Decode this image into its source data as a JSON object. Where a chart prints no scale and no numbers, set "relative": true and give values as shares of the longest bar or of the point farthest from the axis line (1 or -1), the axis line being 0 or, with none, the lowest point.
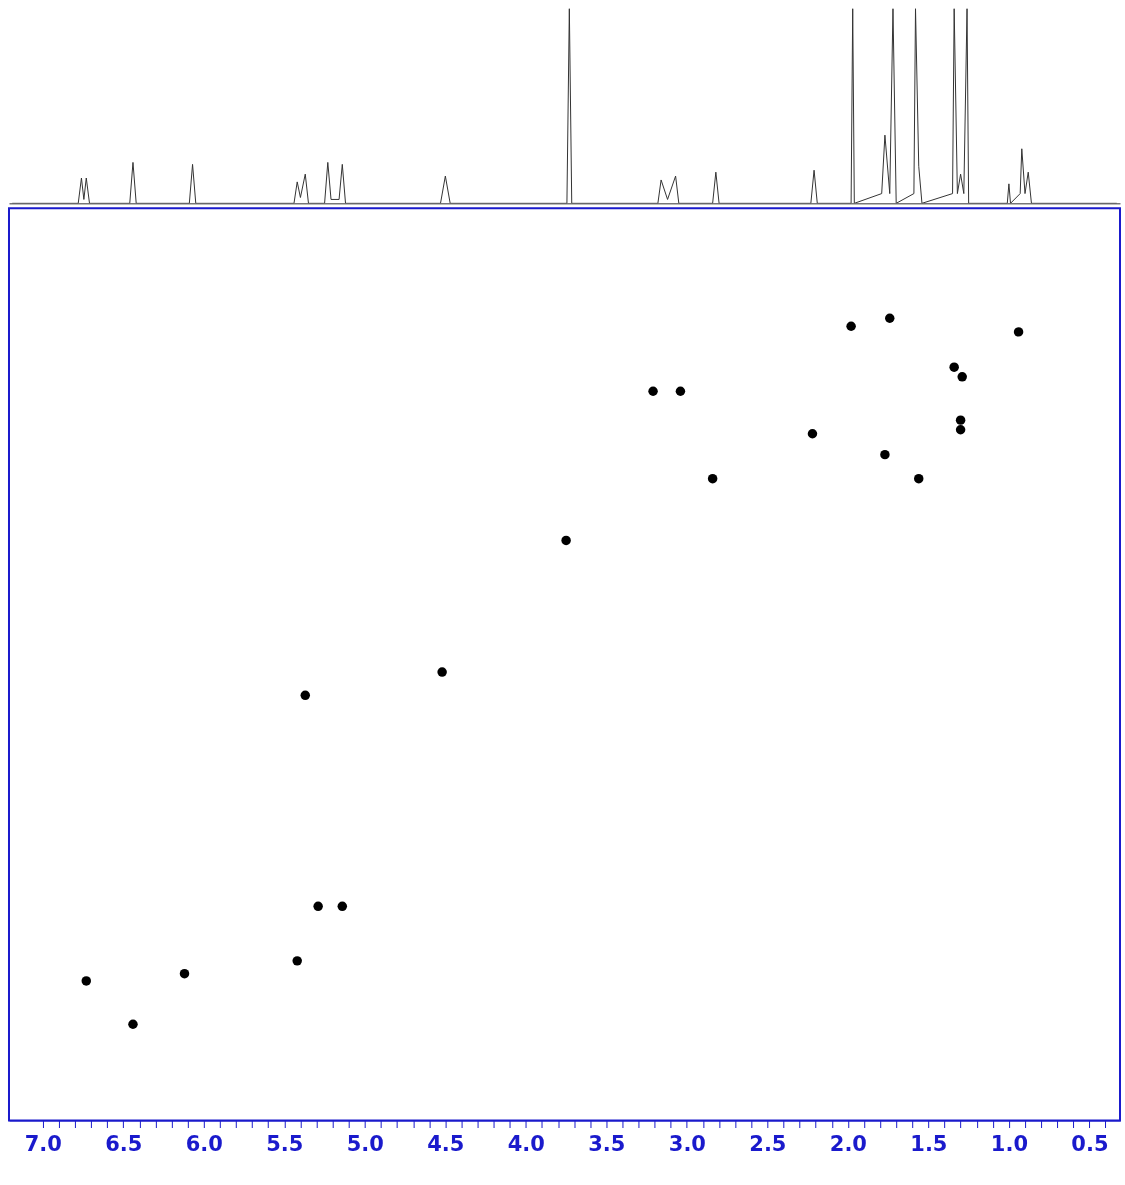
{
  "chart_data": [
    {
      "type": "line",
      "relative": true,
      "color": "#333333",
      "xlim": [
        7.21,
        0.31
      ],
      "tick_labels": false,
      "marker": "none",
      "x": [
        7.19,
        6.78,
        6.76,
        6.745,
        6.73,
        6.71,
        6.46,
        6.44,
        6.42,
        6.09,
        6.07,
        6.05,
        5.44,
        5.42,
        5.4,
        5.37,
        5.35,
        5.25,
        5.23,
        5.21,
        5.16,
        5.14,
        5.12,
        4.53,
        4.5,
        4.47,
        3.745,
        3.73,
        3.715,
        3.18,
        3.16,
        3.12,
        3.07,
        3.05,
        2.84,
        2.82,
        2.8,
        2.23,
        2.21,
        2.19,
        1.98,
        1.97,
        1.96,
        1.79,
        1.77,
        1.74,
        1.72,
        1.7,
        1.59,
        1.58,
        1.56,
        1.54,
        1.35,
        1.34,
        1.32,
        1.3,
        1.28,
        1.26,
        1.25,
        1.01,
        1.0,
        0.99,
        0.93,
        0.92,
        0.9,
        0.88,
        0.86,
        0.33
      ],
      "values": [
        0,
        0,
        0.13,
        0.02,
        0.13,
        0,
        0,
        0.21,
        0,
        0,
        0.2,
        0,
        0,
        0.11,
        0.03,
        0.15,
        0,
        0,
        0.21,
        0.02,
        0.02,
        0.2,
        0,
        0,
        0.14,
        0,
        0,
        1,
        0,
        0,
        0.12,
        0.02,
        0.14,
        0,
        0,
        0.16,
        0,
        0,
        0.17,
        0,
        0,
        1,
        0,
        0.05,
        0.35,
        0.05,
        1,
        0,
        0.05,
        1,
        0.19,
        0,
        0.05,
        1,
        0.05,
        0.15,
        0.05,
        1,
        0,
        0,
        0.1,
        0,
        0.05,
        0.28,
        0.05,
        0.16,
        0,
        0
      ]
    },
    {
      "type": "scatter",
      "relative": true,
      "color": "#000000",
      "marker": "circle",
      "xlim": [
        7.21,
        0.31
      ],
      "tick_labels": "x",
      "x": [
        1.74,
        1.98,
        0.94,
        1.34,
        1.29,
        3.21,
        3.04,
        1.3,
        1.3,
        2.22,
        1.77,
        2.84,
        1.56,
        3.75,
        4.52,
        5.37,
        5.29,
        5.14,
        5.42,
        6.12,
        6.73,
        6.44
      ],
      "values": [
        1.0,
        0.99,
        0.983,
        0.939,
        0.927,
        0.909,
        0.909,
        0.873,
        0.861,
        0.856,
        0.83,
        0.8,
        0.8,
        0.723,
        0.559,
        0.53,
        0.267,
        0.267,
        0.199,
        0.183,
        0.174,
        0.12
      ],
      "xticks": [
        {
          "value": 7.0,
          "label": "7.0"
        },
        {
          "value": 6.9,
          "label": null
        },
        {
          "value": 6.8,
          "label": null
        },
        {
          "value": 6.7,
          "label": null
        },
        {
          "value": 6.6,
          "label": null
        },
        {
          "value": 6.5,
          "label": "6.5"
        },
        {
          "value": 6.4,
          "label": null
        },
        {
          "value": 6.3,
          "label": null
        },
        {
          "value": 6.2,
          "label": null
        },
        {
          "value": 6.1,
          "label": null
        },
        {
          "value": 6.0,
          "label": "6.0"
        },
        {
          "value": 5.9,
          "label": null
        },
        {
          "value": 5.8,
          "label": null
        },
        {
          "value": 5.7,
          "label": null
        },
        {
          "value": 5.6,
          "label": null
        },
        {
          "value": 5.5,
          "label": "5.5"
        },
        {
          "value": 5.4,
          "label": null
        },
        {
          "value": 5.3,
          "label": null
        },
        {
          "value": 5.2,
          "label": null
        },
        {
          "value": 5.1,
          "label": null
        },
        {
          "value": 5.0,
          "label": "5.0"
        },
        {
          "value": 4.9,
          "label": null
        },
        {
          "value": 4.8,
          "label": null
        },
        {
          "value": 4.7,
          "label": null
        },
        {
          "value": 4.6,
          "label": null
        },
        {
          "value": 4.5,
          "label": "4.5"
        },
        {
          "value": 4.4,
          "label": null
        },
        {
          "value": 4.3,
          "label": null
        },
        {
          "value": 4.2,
          "label": null
        },
        {
          "value": 4.1,
          "label": null
        },
        {
          "value": 4.0,
          "label": "4.0"
        },
        {
          "value": 3.9,
          "label": null
        },
        {
          "value": 3.8,
          "label": null
        },
        {
          "value": 3.7,
          "label": null
        },
        {
          "value": 3.6,
          "label": null
        },
        {
          "value": 3.5,
          "label": "3.5"
        },
        {
          "value": 3.4,
          "label": null
        },
        {
          "value": 3.3,
          "label": null
        },
        {
          "value": 3.2,
          "label": null
        },
        {
          "value": 3.1,
          "label": null
        },
        {
          "value": 3.0,
          "label": "3.0"
        },
        {
          "value": 2.9,
          "label": null
        },
        {
          "value": 2.8,
          "label": null
        },
        {
          "value": 2.7,
          "label": null
        },
        {
          "value": 2.6,
          "label": null
        },
        {
          "value": 2.5,
          "label": "2.5"
        },
        {
          "value": 2.4,
          "label": null
        },
        {
          "value": 2.3,
          "label": null
        },
        {
          "value": 2.2,
          "label": null
        },
        {
          "value": 2.1,
          "label": null
        },
        {
          "value": 2.0,
          "label": "2.0"
        },
        {
          "value": 1.9,
          "label": null
        },
        {
          "value": 1.8,
          "label": null
        },
        {
          "value": 1.7,
          "label": null
        },
        {
          "value": 1.6,
          "label": null
        },
        {
          "value": 1.5,
          "label": "1.5"
        },
        {
          "value": 1.4,
          "label": null
        },
        {
          "value": 1.3,
          "label": null
        },
        {
          "value": 1.2,
          "label": null
        },
        {
          "value": 1.1,
          "label": null
        },
        {
          "value": 1.0,
          "label": "1.0"
        },
        {
          "value": 0.9,
          "label": null
        },
        {
          "value": 0.8,
          "label": null
        },
        {
          "value": 0.7,
          "label": null
        },
        {
          "value": 0.6,
          "label": null
        },
        {
          "value": 0.5,
          "label": "0.5"
        },
        {
          "value": 0.4,
          "label": null
        }
      ]
    }
  ]
}
